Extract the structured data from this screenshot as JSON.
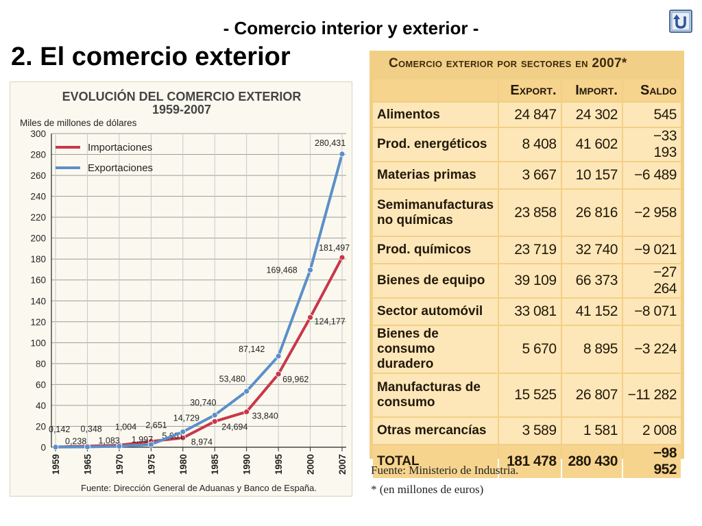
{
  "header": {
    "subtitle": "- Comercio interior y exterior -",
    "section_title": "2. El comercio exterior"
  },
  "back_button": {
    "icon": "back-arrow-icon"
  },
  "colors": {
    "importaciones": "#c8374a",
    "exportaciones": "#5b8fc9",
    "table_bg": "#f2cf86",
    "cell_bg": "#fde7b8"
  },
  "chart_data": {
    "type": "line",
    "title": "EVOLUCIÓN DEL COMERCIO EXTERIOR",
    "subtitle": "1959-2007",
    "ylabel": "Miles de millones de dólares",
    "xlabel": "",
    "x": [
      "1959",
      "1965",
      "1970",
      "1975",
      "1980",
      "1985",
      "1990",
      "1995",
      "2000",
      "2007"
    ],
    "ylim": [
      0,
      300
    ],
    "yticks": [
      0,
      20,
      40,
      60,
      80,
      100,
      120,
      140,
      160,
      180,
      200,
      220,
      240,
      260,
      280,
      300
    ],
    "grid": true,
    "legend_position": "top-left",
    "series": [
      {
        "name": "Importaciones",
        "color": "#c8374a",
        "values": [
          0.238,
          1.083,
          1.997,
          5.601,
          8.974,
          24.694,
          33.84,
          69.962,
          124.177,
          181.497
        ],
        "labels": [
          "0,238",
          "1,083",
          "1,997",
          "5,601",
          "8,974",
          "24,694",
          "33,840",
          "69,962",
          "124,177",
          "181,497"
        ]
      },
      {
        "name": "Exportaciones",
        "color": "#5b8fc9",
        "values": [
          0.142,
          0.348,
          1.004,
          2.651,
          14.729,
          30.74,
          53.48,
          87.142,
          169.468,
          280.431
        ],
        "labels": [
          "0,142",
          "0,348",
          "1,004",
          "2,651",
          "14,729",
          "30,740",
          "53,480",
          "87,142",
          "169,468",
          "280,431"
        ]
      }
    ],
    "source": "Fuente: Dirección General de Aduanas y Banco de España."
  },
  "table": {
    "title": "Comercio exterior por sectores en 2007*",
    "headers": [
      "Export.",
      "Import.",
      "Saldo"
    ],
    "rows": [
      {
        "label": "Alimentos",
        "export": "24 847",
        "import": "24 302",
        "saldo": "545"
      },
      {
        "label": "Prod. energéticos",
        "export": "8 408",
        "import": "41 602",
        "saldo": "−33 193"
      },
      {
        "label": "Materias primas",
        "export": "3 667",
        "import": "10 157",
        "saldo": "−6 489"
      },
      {
        "label": "Semimanufacturas no químicas",
        "export": "23 858",
        "import": "26 816",
        "saldo": "−2 958"
      },
      {
        "label": "Prod. químicos",
        "export": "23 719",
        "import": "32 740",
        "saldo": "−9 021"
      },
      {
        "label": "Bienes de equipo",
        "export": "39 109",
        "import": "66 373",
        "saldo": "−27 264"
      },
      {
        "label": "Sector automóvil",
        "export": "33 081",
        "import": "41 152",
        "saldo": "−8 071"
      },
      {
        "label": "Bienes de consumo duradero",
        "export": "5 670",
        "import": "8 895",
        "saldo": "−3 224"
      },
      {
        "label": "Manufacturas de consumo",
        "export": "15 525",
        "import": "26 807",
        "saldo": "−11 282"
      },
      {
        "label": "Otras mercancías",
        "export": "3 589",
        "import": "1 581",
        "saldo": "2 008"
      }
    ],
    "total": {
      "label": "TOTAL",
      "export": "181 478",
      "import": "280 430",
      "saldo": "−98 952"
    },
    "source": "Fuente: Ministerio de Industria.",
    "footnote": "* (en millones de euros)"
  }
}
